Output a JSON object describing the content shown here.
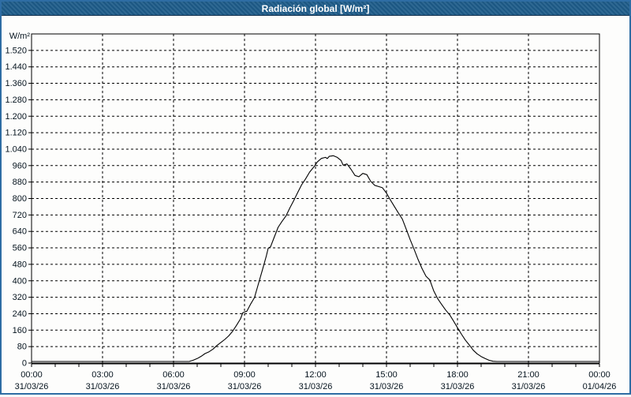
{
  "window": {
    "title": "Radiación global [W/m²]"
  },
  "colors": {
    "frame_border": "#2e6da4",
    "titlebar_bg": "#1e5c8a",
    "titlebar_edge": "#0d2c49",
    "title_text": "#ffffff",
    "plot_bg": "#fdfdfc",
    "grid_line": "#000000",
    "curve_line": "#000000",
    "axis_label": "#06141f"
  },
  "chart_data": {
    "type": "line",
    "title": "Radiación global [W/m²]",
    "ylabel": "W/m²",
    "xlabel": "",
    "ylim": [
      0,
      1600
    ],
    "xlim_hours": [
      0,
      24
    ],
    "grid": "dashed black; horizontal every 80 W/m², vertical every 3 h, minor x-ticks hourly",
    "legend_position": "none",
    "y_ticks": [
      {
        "value": 0,
        "label": "0"
      },
      {
        "value": 80,
        "label": "80"
      },
      {
        "value": 160,
        "label": "160"
      },
      {
        "value": 240,
        "label": "240"
      },
      {
        "value": 320,
        "label": "320"
      },
      {
        "value": 400,
        "label": "400"
      },
      {
        "value": 480,
        "label": "480"
      },
      {
        "value": 560,
        "label": "560"
      },
      {
        "value": 640,
        "label": "640"
      },
      {
        "value": 720,
        "label": "720"
      },
      {
        "value": 800,
        "label": "800"
      },
      {
        "value": 880,
        "label": "880"
      },
      {
        "value": 960,
        "label": "960"
      },
      {
        "value": 1040,
        "label": "1.040"
      },
      {
        "value": 1120,
        "label": "1.120"
      },
      {
        "value": 1200,
        "label": "1.200"
      },
      {
        "value": 1280,
        "label": "1.280"
      },
      {
        "value": 1360,
        "label": "1.360"
      },
      {
        "value": 1440,
        "label": "1.440"
      },
      {
        "value": 1520,
        "label": "1.520"
      }
    ],
    "x_ticks": [
      {
        "hour": 0,
        "time": "00:00",
        "date": "31/03/26"
      },
      {
        "hour": 3,
        "time": "03:00",
        "date": "31/03/26"
      },
      {
        "hour": 6,
        "time": "06:00",
        "date": "31/03/26"
      },
      {
        "hour": 9,
        "time": "09:00",
        "date": "31/03/26"
      },
      {
        "hour": 12,
        "time": "12:00",
        "date": "31/03/26"
      },
      {
        "hour": 15,
        "time": "15:00",
        "date": "31/03/26"
      },
      {
        "hour": 18,
        "time": "18:00",
        "date": "31/03/26"
      },
      {
        "hour": 21,
        "time": "21:00",
        "date": "31/03/26"
      },
      {
        "hour": 24,
        "time": "00:00",
        "date": "01/04/26"
      }
    ],
    "series": [
      {
        "name": "Radiación global",
        "unit": "W/m²",
        "peak_value": 1008,
        "peak_time_hour": 12.75,
        "points": [
          [
            0,
            2
          ],
          [
            0.5,
            2
          ],
          [
            1,
            2
          ],
          [
            1.5,
            2
          ],
          [
            2,
            2
          ],
          [
            2.5,
            2
          ],
          [
            3,
            2
          ],
          [
            3.5,
            2
          ],
          [
            4,
            2
          ],
          [
            4.5,
            2
          ],
          [
            5,
            2
          ],
          [
            5.5,
            2
          ],
          [
            6,
            3
          ],
          [
            6.33,
            4
          ],
          [
            6.67,
            8
          ],
          [
            6.83,
            14
          ],
          [
            7,
            22
          ],
          [
            7.17,
            33
          ],
          [
            7.33,
            46
          ],
          [
            7.5,
            55
          ],
          [
            7.67,
            68
          ],
          [
            7.83,
            85
          ],
          [
            8,
            100
          ],
          [
            8.17,
            115
          ],
          [
            8.33,
            132
          ],
          [
            8.5,
            155
          ],
          [
            8.67,
            185
          ],
          [
            8.83,
            215
          ],
          [
            8.93,
            245
          ],
          [
            9.1,
            252
          ],
          [
            9.25,
            285
          ],
          [
            9.42,
            318
          ],
          [
            9.58,
            382
          ],
          [
            9.75,
            450
          ],
          [
            9.92,
            520
          ],
          [
            10,
            558
          ],
          [
            10.1,
            565
          ],
          [
            10.25,
            610
          ],
          [
            10.42,
            660
          ],
          [
            10.58,
            688
          ],
          [
            10.75,
            715
          ],
          [
            10.92,
            755
          ],
          [
            11.08,
            790
          ],
          [
            11.25,
            830
          ],
          [
            11.42,
            868
          ],
          [
            11.58,
            895
          ],
          [
            11.75,
            928
          ],
          [
            11.92,
            952
          ],
          [
            12.08,
            978
          ],
          [
            12.25,
            995
          ],
          [
            12.42,
            1000
          ],
          [
            12.5,
            994
          ],
          [
            12.58,
            1005
          ],
          [
            12.75,
            1008
          ],
          [
            12.92,
            1000
          ],
          [
            13.08,
            985
          ],
          [
            13.17,
            962
          ],
          [
            13.33,
            968
          ],
          [
            13.5,
            942
          ],
          [
            13.67,
            912
          ],
          [
            13.83,
            906
          ],
          [
            14,
            922
          ],
          [
            14.17,
            916
          ],
          [
            14.33,
            884
          ],
          [
            14.5,
            864
          ],
          [
            14.67,
            858
          ],
          [
            14.83,
            852
          ],
          [
            15,
            826
          ],
          [
            15.17,
            792
          ],
          [
            15.33,
            762
          ],
          [
            15.5,
            730
          ],
          [
            15.67,
            700
          ],
          [
            15.83,
            652
          ],
          [
            16,
            600
          ],
          [
            16.17,
            552
          ],
          [
            16.33,
            505
          ],
          [
            16.5,
            460
          ],
          [
            16.67,
            422
          ],
          [
            16.83,
            404
          ],
          [
            17,
            350
          ],
          [
            17.17,
            312
          ],
          [
            17.33,
            285
          ],
          [
            17.5,
            258
          ],
          [
            17.67,
            235
          ],
          [
            17.83,
            205
          ],
          [
            18,
            172
          ],
          [
            18.17,
            140
          ],
          [
            18.33,
            112
          ],
          [
            18.5,
            88
          ],
          [
            18.67,
            62
          ],
          [
            18.83,
            45
          ],
          [
            19,
            32
          ],
          [
            19.17,
            22
          ],
          [
            19.33,
            14
          ],
          [
            19.5,
            9
          ],
          [
            19.67,
            6
          ],
          [
            19.83,
            4
          ],
          [
            20,
            3
          ],
          [
            20.5,
            2
          ],
          [
            21,
            2
          ],
          [
            22,
            2
          ],
          [
            23,
            2
          ],
          [
            24,
            2
          ]
        ]
      }
    ]
  }
}
